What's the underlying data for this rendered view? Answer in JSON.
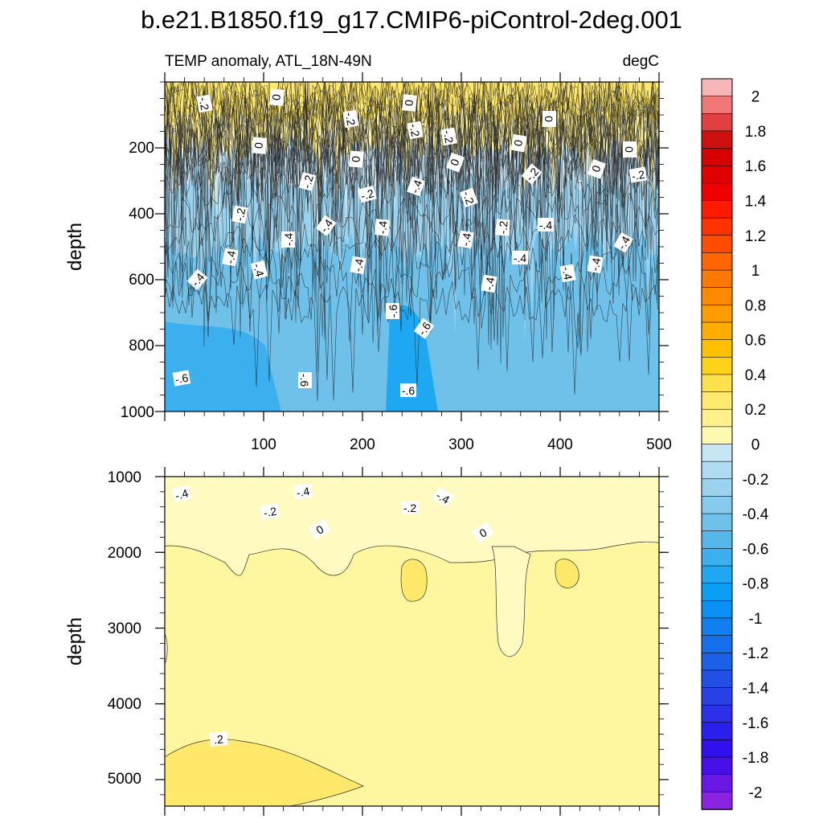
{
  "chart_data": {
    "type": "contour",
    "title": "b.e21.B1850.f19_g17.CMIP6-piControl-2deg.001",
    "variable_label": "TEMP anomaly, ATL_18N-49N",
    "units_label": "degC",
    "x": {
      "label": "",
      "range": [
        0,
        500
      ],
      "ticks": [
        "100",
        "200",
        "300",
        "400",
        "500"
      ]
    },
    "panels": [
      {
        "name": "upper",
        "ylabel": "depth",
        "ylim": [
          0,
          1000
        ],
        "yticks": [
          "200",
          "400",
          "600",
          "800",
          "1000"
        ],
        "contour_labels": [
          "-.2",
          "0",
          "-.4",
          "-.6"
        ],
        "levels": [
          {
            "value": 0,
            "depth_mean": 200
          },
          {
            "value": -0.2,
            "depth_mean": 300
          },
          {
            "value": -0.4,
            "depth_mean": 500
          },
          {
            "value": -0.6,
            "depth_mean": 760
          }
        ]
      },
      {
        "name": "lower",
        "ylabel": "depth",
        "ylim": [
          1000,
          5350
        ],
        "yticks": [
          "1000",
          "2000",
          "3000",
          "4000",
          "5000"
        ],
        "contour_labels": [
          "-.4",
          "-.2",
          "0",
          ".2"
        ],
        "levels": [
          {
            "value": -0.4,
            "depth_mean": 1150
          },
          {
            "value": -0.2,
            "depth_mean": 1450
          },
          {
            "value": 0,
            "depth_mean": 1800
          },
          {
            "value": 0.2,
            "depth_mean": 4700
          }
        ]
      }
    ],
    "colorbar": {
      "levels": [
        -2.1,
        -2,
        -1.9,
        -1.8,
        -1.7,
        -1.6,
        -1.5,
        -1.4,
        -1.3,
        -1.2,
        -1.1,
        -1,
        -0.9,
        -0.8,
        -0.7,
        -0.6,
        -0.5,
        -0.4,
        -0.3,
        -0.2,
        -0.1,
        0,
        0.1,
        0.2,
        0.3,
        0.4,
        0.5,
        0.6,
        0.7,
        0.8,
        0.9,
        1,
        1.1,
        1.2,
        1.3,
        1.4,
        1.5,
        1.6,
        1.7,
        1.8,
        1.9,
        2,
        2.1
      ],
      "tick_labels": [
        "2",
        "1.8",
        "1.6",
        "1.4",
        "1.2",
        "1",
        "0.8",
        "0.6",
        "0.4",
        "0.2",
        "0",
        "-0.2",
        "-0.4",
        "-0.6",
        "-0.8",
        "-1",
        "-1.2",
        "-1.4",
        "-1.6",
        "-1.8",
        "-2"
      ],
      "colors": [
        "#f7b6b8",
        "#f07878",
        "#e04040",
        "#cf1010",
        "#d60000",
        "#e00000",
        "#ee0000",
        "#ff1a00",
        "#ff3300",
        "#ff4d00",
        "#ff6600",
        "#ff7800",
        "#ff8a00",
        "#ff9c00",
        "#ffae00",
        "#ffc000",
        "#ffd21a",
        "#ffe04d",
        "#ffea70",
        "#fff08c",
        "#fffab0",
        "#c6e6f6",
        "#b0dcf2",
        "#9bd3ef",
        "#86caec",
        "#6fc1ea",
        "#56b8ea",
        "#3cb0ee",
        "#1ea8f2",
        "#0a9ef5",
        "#0b90f5",
        "#1080f0",
        "#1670ec",
        "#1c60e8",
        "#2250e4",
        "#2840e4",
        "#2c30e8",
        "#2a20ec",
        "#3010ec",
        "#4810e8",
        "#6a18e4",
        "#8a24e0"
      ]
    },
    "fill_colors": {
      "neg_0_2": "#c6e6f6",
      "neg_2_4": "#9bd3ef",
      "neg_4_6": "#6fc1ea",
      "neg_6_8": "#3cb0ee",
      "neg_8_10": "#1ea8f2",
      "pos_0_2": "#fff6a0",
      "pos_2_4": "#ffe86a",
      "pos_0_2_upper": "#fff3a0"
    }
  }
}
